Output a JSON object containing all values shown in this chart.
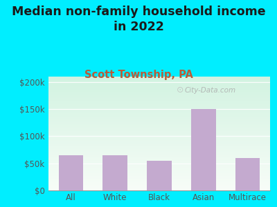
{
  "title": "Median non-family household income\nin 2022",
  "subtitle": "Scott Township, PA",
  "categories": [
    "All",
    "White",
    "Black",
    "Asian",
    "Multirace"
  ],
  "values": [
    65000,
    65000,
    55000,
    150000,
    60000
  ],
  "bar_color": "#c4aacf",
  "title_fontsize": 12.5,
  "subtitle_fontsize": 10.5,
  "subtitle_color": "#b85c38",
  "title_color": "#1a1a1a",
  "background_outer": "#00eeff",
  "ylim": [
    0,
    210000
  ],
  "yticks": [
    0,
    50000,
    100000,
    150000,
    200000
  ],
  "ytick_labels": [
    "$0",
    "$50k",
    "$100k",
    "$150k",
    "$200k"
  ],
  "watermark": "City-Data.com",
  "tick_color": "#555555",
  "grid_color": "#cccccc"
}
